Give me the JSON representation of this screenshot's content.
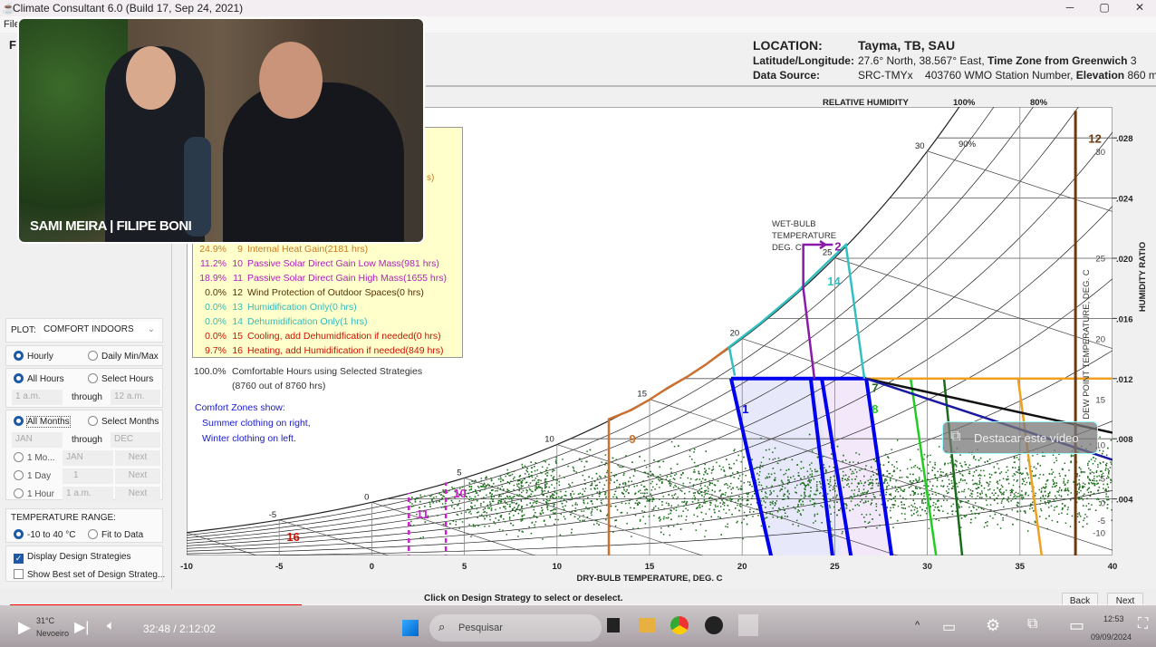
{
  "window": {
    "title": "Climate Consultant 6.0 (Build 17, Sep 24, 2021)",
    "menu": [
      "File"
    ],
    "page_letter": "F"
  },
  "location": {
    "label": "LOCATION:",
    "value": "Tayma, TB, SAU",
    "latlon_label": "Latitude/Longitude:",
    "latlon_value": "27.6° North, 38.567° East,",
    "tz_label": "Time Zone from Greenwich",
    "tz_value": "3",
    "source_label": "Data Source:",
    "source_value": "SRC-TMYx",
    "station": "403760 WMO Station Number,",
    "elev_label": "Elevation",
    "elev_value": "860 m"
  },
  "left_panel": {
    "plot_label": "PLOT:",
    "plot_value": "COMFORT INDOORS",
    "hourly": "Hourly",
    "daily": "Daily Min/Max",
    "all_hours": "All Hours",
    "select_hours": "Select Hours",
    "hour_from": "1 a.m.",
    "through": "through",
    "hour_to": "12 a.m.",
    "all_months": "All Months",
    "select_months": "Select Months",
    "month_from": "JAN",
    "month_to": "DEC",
    "one_month": "1 Mo...",
    "one_month_val": "JAN",
    "one_day": "1 Day",
    "one_day_val": "1",
    "one_hour": "1 Hour",
    "one_hour_val": "1 a.m.",
    "next": "Next",
    "temp_range_label": "TEMPERATURE RANGE:",
    "range_a": "-10 to 40 °C",
    "range_b": "Fit to Data",
    "display_strategies": "Display Design Strategies",
    "show_best": "Show Best set of Design Strateg...",
    "display_strategies_checked": true,
    "show_best_checked": false
  },
  "strategies": [
    {
      "pct": "24.9%",
      "num": "9",
      "label": "Internal Heat Gain(2181 hrs)",
      "color": "#cc7a22"
    },
    {
      "pct": "11.2%",
      "num": "10",
      "label": "Passive Solar Direct Gain Low Mass(981 hrs)",
      "color": "#b020c0"
    },
    {
      "pct": "18.9%",
      "num": "11",
      "label": "Passive Solar Direct Gain High Mass(1655 hrs)",
      "color": "#b020c0"
    },
    {
      "pct": "0.0%",
      "num": "12",
      "label": "Wind Protection of Outdoor Spaces(0 hrs)",
      "color": "#553300"
    },
    {
      "pct": "0.0%",
      "num": "13",
      "label": "Humidification Only(0 hrs)",
      "color": "#33bbbb"
    },
    {
      "pct": "0.0%",
      "num": "14",
      "label": "Dehumidification Only(1 hrs)",
      "color": "#33bbbb"
    },
    {
      "pct": "0.0%",
      "num": "15",
      "label": "Cooling, add Dehumidfication if needed(0 hrs)",
      "color": "#cc1100"
    },
    {
      "pct": "9.7%",
      "num": "16",
      "label": "Heating, add Humidification if needed(849 hrs)",
      "color": "#cc1100"
    }
  ],
  "partial_text": "s)",
  "summary": {
    "pct": "100.0%",
    "label": "Comfortable Hours using Selected Strategies",
    "sub": "(8760 out of 8760 hrs)"
  },
  "comfort_note": {
    "title": "Comfort Zones show:",
    "l1": "Summer clothing on right,",
    "l2": "Winter clothing on left."
  },
  "chart_data": {
    "type": "psychrometric",
    "x_axis": {
      "label": "DRY-BULB TEMPERATURE, DEG. C",
      "range": [
        -10,
        40
      ],
      "ticks": [
        "-10",
        "-5",
        "0",
        "5",
        "10",
        "15",
        "20",
        "25",
        "30",
        "35",
        "40"
      ]
    },
    "y_axis": {
      "label": "HUMIDITY RATIO",
      "range": [
        0,
        0.0298
      ],
      "ticks": [
        ".004",
        ".008",
        ".012",
        ".016",
        ".020",
        ".024",
        ".028"
      ]
    },
    "dew_point_axis": {
      "label": "DEW POINT TEMPERATURE, DEG. C",
      "ticks": [
        "-10",
        "-5",
        "0",
        "5",
        "10",
        "15",
        "20",
        "25",
        "30"
      ]
    },
    "rh_title": "RELATIVE HUMIDITY",
    "rh_labels": [
      "100%",
      "80%"
    ],
    "rh_inner": "90%",
    "wet_bulb_title": [
      "WET-BULB",
      "TEMPERATURE",
      "DEG. C"
    ],
    "wet_bulb_ticks": [
      "-5",
      "0",
      "5",
      "10",
      "15",
      "20",
      "25",
      "30"
    ],
    "strategy_marks": [
      {
        "id": "comfort",
        "color": "#0000ee",
        "lines": [
          [
            [
              19.4,
              0.012
            ],
            [
              26.7,
              0.012
            ]
          ],
          [
            [
              19.4,
              0.012
            ],
            [
              21.6,
              0
            ]
          ],
          [
            [
              23.7,
              0.012
            ],
            [
              24.9,
              0
            ]
          ],
          [
            [
              24.3,
              0.012
            ],
            [
              25.9,
              0
            ]
          ],
          [
            [
              26.7,
              0.012
            ],
            [
              28.1,
              0
            ]
          ]
        ],
        "label": "1",
        "label_at": [
          20.0,
          0.0097
        ]
      },
      {
        "id": "7",
        "color": "#1a6b1a",
        "lines": [
          [
            [
              30.9,
              0.012
            ],
            [
              31.9,
              0
            ]
          ]
        ],
        "label": "7",
        "label_at": [
          27.0,
          0.0111
        ]
      },
      {
        "id": "8",
        "color": "#22cc22",
        "lines": [
          [
            [
              29.1,
              0.012
            ],
            [
              30.5,
              0
            ]
          ]
        ],
        "label": "8",
        "label_at": [
          27.0,
          0.0097
        ]
      },
      {
        "id": "orange",
        "color": "#f0a020",
        "lines": [
          [
            [
              26.7,
              0.012
            ],
            [
              40,
              0.012
            ]
          ],
          [
            [
              34.9,
              0.012
            ],
            [
              36.2,
              0
            ]
          ],
          [
            [
              12.8,
              0
            ],
            [
              40,
              0
            ]
          ]
        ]
      },
      {
        "id": "black",
        "color": "#111111",
        "lines": [
          [
            [
              26.7,
              0.012
            ],
            [
              40,
              0.0084
            ]
          ]
        ]
      },
      {
        "id": "navy",
        "color": "#1a1aa0",
        "lines": [
          [
            [
              26.7,
              0.012
            ],
            [
              40,
              0.0066
            ]
          ]
        ]
      },
      {
        "id": "12",
        "color": "#6b3a10",
        "lines": [
          [
            [
              38,
              0
            ],
            [
              38,
              0.0298
            ]
          ]
        ],
        "label": "12",
        "label_at": [
          38.7,
          0.0269
        ]
      },
      {
        "id": "9",
        "color": "#cc7030",
        "lines": [
          [
            [
              12.8,
              0
            ],
            [
              12.8,
              0.0093
            ],
            [
              14,
              0.0099
            ],
            [
              15,
              0.0106
            ],
            [
              16,
              0.0114
            ],
            [
              17,
              0.0121
            ],
            [
              18,
              0.0129
            ],
            [
              19.3,
              0.0141
            ]
          ]
        ],
        "label": "9",
        "label_at": [
          13.9,
          0.0077
        ]
      },
      {
        "id": "14",
        "color": "#33c0c0",
        "lines": [
          [
            [
              19.6,
              0.0122
            ],
            [
              19.3,
              0.0141
            ],
            [
              21,
              0.0157
            ],
            [
              23,
              0.0178
            ],
            [
              24.5,
              0.0196
            ],
            [
              25.6,
              0.0209
            ],
            [
              26.6,
              0.012
            ]
          ]
        ],
        "label": "14",
        "label_at": [
          24.6,
          0.0182
        ]
      },
      {
        "id": "2",
        "color": "#8a1aaa",
        "lines": [
          [
            [
              23.9,
              0.012
            ],
            [
              23.3,
              0.018
            ],
            [
              23.3,
              0.0209
            ],
            [
              24.9,
              0.0209
            ]
          ]
        ],
        "label": "2",
        "label_at": [
          25.0,
          0.0205
        ]
      },
      {
        "id": "10",
        "color": "#cc22cc",
        "dashed": true,
        "lines": [
          [
            [
              4,
              0
            ],
            [
              4,
              0.0051
            ]
          ]
        ],
        "label": "10",
        "label_at": [
          4.4,
          0.0041
        ]
      },
      {
        "id": "11",
        "color": "#cc22cc",
        "dashed": true,
        "lines": [
          [
            [
              2,
              0
            ],
            [
              2,
              0.0044
            ]
          ]
        ],
        "label": "11",
        "label_at": [
          2.4,
          0.0027
        ]
      },
      {
        "id": "16",
        "color": "#cc1100",
        "lines": [],
        "label": "16",
        "label_at": [
          -4.6,
          0.0012
        ]
      }
    ]
  },
  "overlay": {
    "caption": "SAMI MEIRA | FILIPE BONI",
    "pip_button": "Destacar este vídeo"
  },
  "footer": {
    "hint": "Click on Design Strategy to select or deselect.",
    "back": "Back",
    "next": "Next"
  },
  "player": {
    "time": "32:48 / 2:12:02",
    "progress": 0.257,
    "weather_temp": "31°C",
    "weather_text": "Nevoeiro",
    "search": "Pesquisar",
    "clock": "12:53",
    "date": "09/09/2024"
  }
}
